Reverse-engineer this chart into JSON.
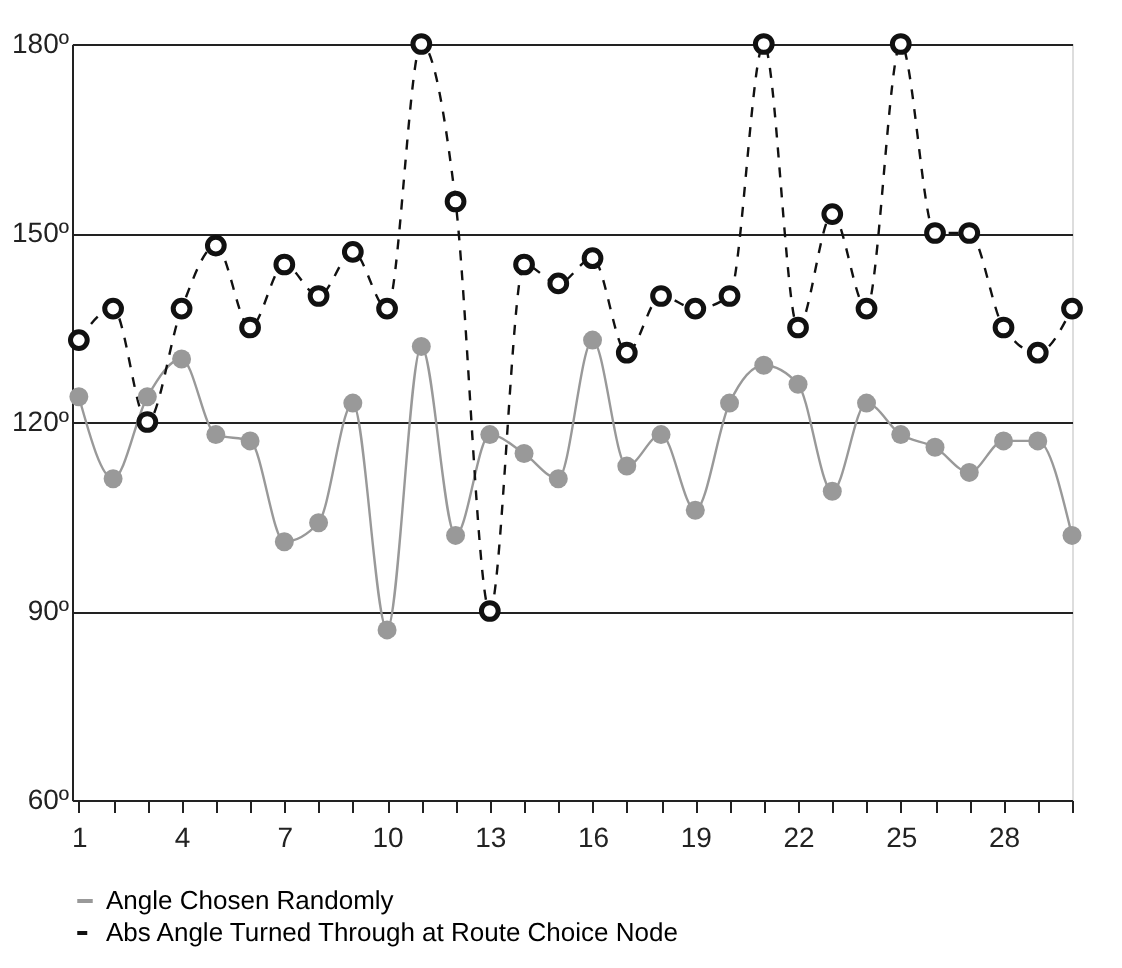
{
  "chart_data": {
    "type": "line",
    "x": [
      1,
      2,
      3,
      4,
      5,
      6,
      7,
      8,
      9,
      10,
      11,
      12,
      13,
      14,
      15,
      16,
      17,
      18,
      19,
      20,
      21,
      22,
      23,
      24,
      25,
      26,
      27,
      28,
      29,
      30
    ],
    "series": [
      {
        "name": "Angle Chosen Randomly",
        "color": "#999999",
        "line_style": "solid",
        "marker": "circle",
        "values": [
          124,
          111,
          124,
          130,
          118,
          117,
          101,
          104,
          123,
          87,
          132,
          102,
          118,
          115,
          111,
          133,
          113,
          118,
          106,
          123,
          129,
          126,
          109,
          123,
          118,
          116,
          112,
          117,
          117,
          102
        ]
      },
      {
        "name": "Abs Angle Turned Through at Route Choice Node",
        "color": "#111111",
        "line_style": "dashed",
        "marker": "circle",
        "values": [
          133,
          138,
          120,
          138,
          148,
          135,
          145,
          140,
          147,
          138,
          180,
          155,
          90,
          145,
          142,
          146,
          131,
          140,
          138,
          140,
          180,
          135,
          153,
          138,
          180,
          150,
          150,
          135,
          131,
          138
        ]
      }
    ],
    "xlim": [
      0.8,
      30
    ],
    "xticks": [
      {
        "value": 1,
        "label": "1"
      },
      {
        "value": 2,
        "label": null
      },
      {
        "value": 3,
        "label": null
      },
      {
        "value": 4,
        "label": "4"
      },
      {
        "value": 5,
        "label": null
      },
      {
        "value": 6,
        "label": null
      },
      {
        "value": 7,
        "label": "7"
      },
      {
        "value": 8,
        "label": null
      },
      {
        "value": 9,
        "label": null
      },
      {
        "value": 10,
        "label": "10"
      },
      {
        "value": 11,
        "label": null
      },
      {
        "value": 12,
        "label": null
      },
      {
        "value": 13,
        "label": "13"
      },
      {
        "value": 14,
        "label": null
      },
      {
        "value": 15,
        "label": null
      },
      {
        "value": 16,
        "label": "16"
      },
      {
        "value": 17,
        "label": null
      },
      {
        "value": 18,
        "label": null
      },
      {
        "value": 19,
        "label": "19"
      },
      {
        "value": 20,
        "label": null
      },
      {
        "value": 21,
        "label": null
      },
      {
        "value": 22,
        "label": "22"
      },
      {
        "value": 23,
        "label": null
      },
      {
        "value": 24,
        "label": null
      },
      {
        "value": 25,
        "label": "25"
      },
      {
        "value": 26,
        "label": null
      },
      {
        "value": 27,
        "label": null
      },
      {
        "value": 28,
        "label": "28"
      },
      {
        "value": 29,
        "label": null
      },
      {
        "value": 30,
        "label": null
      }
    ],
    "ylim": [
      60,
      180
    ],
    "yticks": [
      {
        "value": 60,
        "label": "60º"
      },
      {
        "value": 90,
        "label": "90º"
      },
      {
        "value": 120,
        "label": "120º"
      },
      {
        "value": 150,
        "label": "150º"
      },
      {
        "value": 180,
        "label": "180º"
      }
    ],
    "grid": "y",
    "legend": "bottom"
  }
}
